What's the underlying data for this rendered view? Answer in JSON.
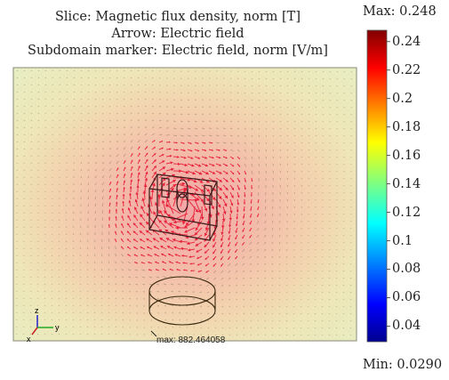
{
  "chart_data": {
    "type": "heatmap",
    "title_lines": [
      "Slice: Magnetic flux density, norm [T]",
      "Arrow: Electric field",
      "Subdomain marker: Electric field, norm [V/m]"
    ],
    "colorbar": {
      "max_label": "Max: 0.248",
      "min_label": "Min: 0.0290",
      "max": 0.248,
      "min": 0.029,
      "ticks": [
        "0.24",
        "0.22",
        "0.2",
        "0.18",
        "0.16",
        "0.14",
        "0.12",
        "0.1",
        "0.08",
        "0.06",
        "0.04"
      ],
      "tick_values": [
        0.24,
        0.22,
        0.2,
        0.18,
        0.16,
        0.14,
        0.12,
        0.1,
        0.08,
        0.06,
        0.04
      ],
      "colormap": "jet"
    },
    "annotation": "max: 882.464058",
    "axes_triad": {
      "z": "z",
      "y": "y",
      "x": "x"
    },
    "colors": {
      "arrow": "#e8203a",
      "frame": "#000000",
      "slice_center": "#f3a0a0",
      "slice_edge": "#e9f0bf"
    },
    "grid": false
  }
}
